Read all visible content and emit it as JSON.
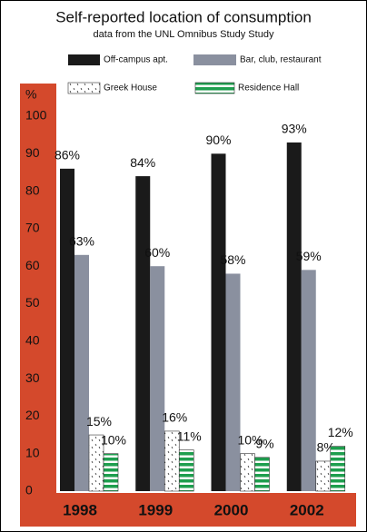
{
  "chart_data": {
    "type": "bar",
    "title": "Self-reported location of consumption",
    "subtitle": "data from the UNL Omnibus Study Study",
    "y_label": "%",
    "categories": [
      "1998",
      "1999",
      "2000",
      "2002"
    ],
    "series": [
      {
        "name": "Off-campus apt.",
        "color": "#1a1a1a",
        "values": [
          86,
          84,
          90,
          93
        ],
        "value_labels": [
          "86%",
          "84%",
          "90%",
          "93%"
        ]
      },
      {
        "name": "Bar, club, restaurant",
        "color": "#8a909f",
        "values": [
          63,
          60,
          58,
          59
        ],
        "value_labels": [
          "63%",
          "60%",
          "58%",
          "59%"
        ]
      },
      {
        "name": "Greek House",
        "color": "#ffffff",
        "pattern": "dots",
        "values": [
          15,
          16,
          10,
          8
        ],
        "value_labels": [
          "15%",
          "16%",
          "10%",
          "8%"
        ]
      },
      {
        "name": "Residence Hall",
        "color": "#1e9e4e",
        "pattern": "stripes",
        "values": [
          10,
          11,
          9,
          12
        ],
        "value_labels": [
          "10%",
          "11%",
          "9%",
          "12%"
        ]
      }
    ],
    "ylim": [
      0,
      100
    ],
    "yticks": [
      0,
      10,
      20,
      30,
      40,
      50,
      60,
      70,
      80,
      90,
      100
    ],
    "axis_color": "#d4492c"
  }
}
